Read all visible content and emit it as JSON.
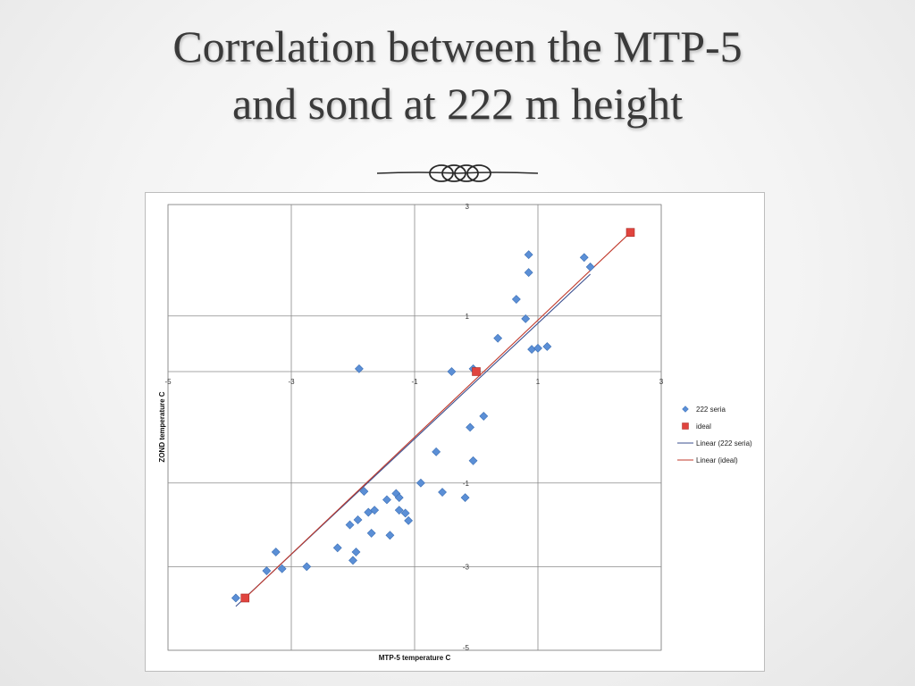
{
  "slide": {
    "title_line1": "Correlation between the MTP-5",
    "title_line2": "and sond at 222 m height"
  },
  "chart_data": {
    "type": "scatter",
    "xlabel": "MTP-5 temperature C",
    "ylabel": "ZOND temperature C",
    "xlim": [
      -5,
      3
    ],
    "ylim": [
      -5,
      3
    ],
    "x_ticks": [
      "-5",
      "-3",
      "-1",
      "1",
      "3"
    ],
    "y_ticks": [
      "3",
      "1",
      "-1",
      "-3",
      "-5"
    ],
    "grid": true,
    "legend_position": "right",
    "colors": {
      "series": "#5b8fd6",
      "series_edge": "#3c6fb5",
      "ideal": "#e0443e",
      "trend_series": "#3b4f8f",
      "trend_ideal": "#c0392b",
      "grid": "#8a8a8a"
    },
    "series": [
      {
        "name": "222 seria",
        "marker": "diamond",
        "points": [
          [
            0.85,
            2.1
          ],
          [
            0.85,
            1.78
          ],
          [
            1.75,
            2.05
          ],
          [
            1.85,
            1.88
          ],
          [
            0.65,
            1.3
          ],
          [
            0.8,
            0.95
          ],
          [
            0.35,
            0.6
          ],
          [
            0.9,
            0.4
          ],
          [
            1.0,
            0.42
          ],
          [
            1.15,
            0.45
          ],
          [
            -0.05,
            0.05
          ],
          [
            -0.4,
            0.0
          ],
          [
            -1.9,
            0.05
          ],
          [
            0.12,
            -0.4
          ],
          [
            -0.1,
            -0.5
          ],
          [
            -0.05,
            -0.8
          ],
          [
            -0.65,
            -0.72
          ],
          [
            -0.9,
            -1.0
          ],
          [
            -0.55,
            -1.22
          ],
          [
            -0.18,
            -1.35
          ],
          [
            -1.82,
            -1.2
          ],
          [
            -1.3,
            -1.25
          ],
          [
            -1.25,
            -1.35
          ],
          [
            -1.45,
            -1.4
          ],
          [
            -1.65,
            -1.65
          ],
          [
            -1.25,
            -1.65
          ],
          [
            -1.15,
            -1.72
          ],
          [
            -1.75,
            -1.7
          ],
          [
            -1.92,
            -1.88
          ],
          [
            -2.05,
            -2.0
          ],
          [
            -1.7,
            -2.2
          ],
          [
            -1.1,
            -1.9
          ],
          [
            -1.4,
            -2.25
          ],
          [
            -2.25,
            -2.55
          ],
          [
            -1.95,
            -2.65
          ],
          [
            -3.25,
            -2.65
          ],
          [
            -2.0,
            -2.85
          ],
          [
            -2.75,
            -3.0
          ],
          [
            -3.15,
            -3.05
          ],
          [
            -3.4,
            -3.1
          ],
          [
            -3.9,
            -3.75
          ]
        ]
      },
      {
        "name": "ideal",
        "marker": "square",
        "points": [
          [
            -3.75,
            -3.75
          ],
          [
            0.0,
            0.0
          ],
          [
            2.5,
            2.5
          ]
        ]
      }
    ],
    "trendlines": [
      {
        "name": "Linear (222 seria)",
        "x": [
          -3.9,
          1.85
        ],
        "y": [
          -3.95,
          1.75
        ]
      },
      {
        "name": "Linear (ideal)",
        "x": [
          -3.75,
          2.5
        ],
        "y": [
          -3.75,
          2.5
        ]
      }
    ]
  }
}
